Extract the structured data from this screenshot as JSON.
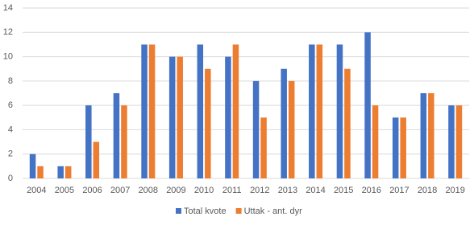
{
  "chart_data": {
    "type": "bar",
    "categories": [
      "2004",
      "2005",
      "2006",
      "2007",
      "2008",
      "2009",
      "2010",
      "2011",
      "2012",
      "2013",
      "2014",
      "2015",
      "2016",
      "2017",
      "2018",
      "2019"
    ],
    "series": [
      {
        "name": "Total kvote",
        "color": "#4472c4",
        "values": [
          2,
          1,
          6,
          7,
          11,
          10,
          11,
          10,
          8,
          9,
          11,
          11,
          12,
          5,
          7,
          6
        ]
      },
      {
        "name": "Uttak - ant. dyr",
        "color": "#ed7d31",
        "values": [
          1,
          1,
          3,
          6,
          11,
          10,
          9,
          11,
          5,
          8,
          11,
          9,
          6,
          5,
          7,
          6
        ]
      }
    ],
    "ylim": [
      0,
      14
    ],
    "yticks": [
      0,
      2,
      4,
      6,
      8,
      10,
      12,
      14
    ],
    "grid": true,
    "legend": "bottom"
  }
}
